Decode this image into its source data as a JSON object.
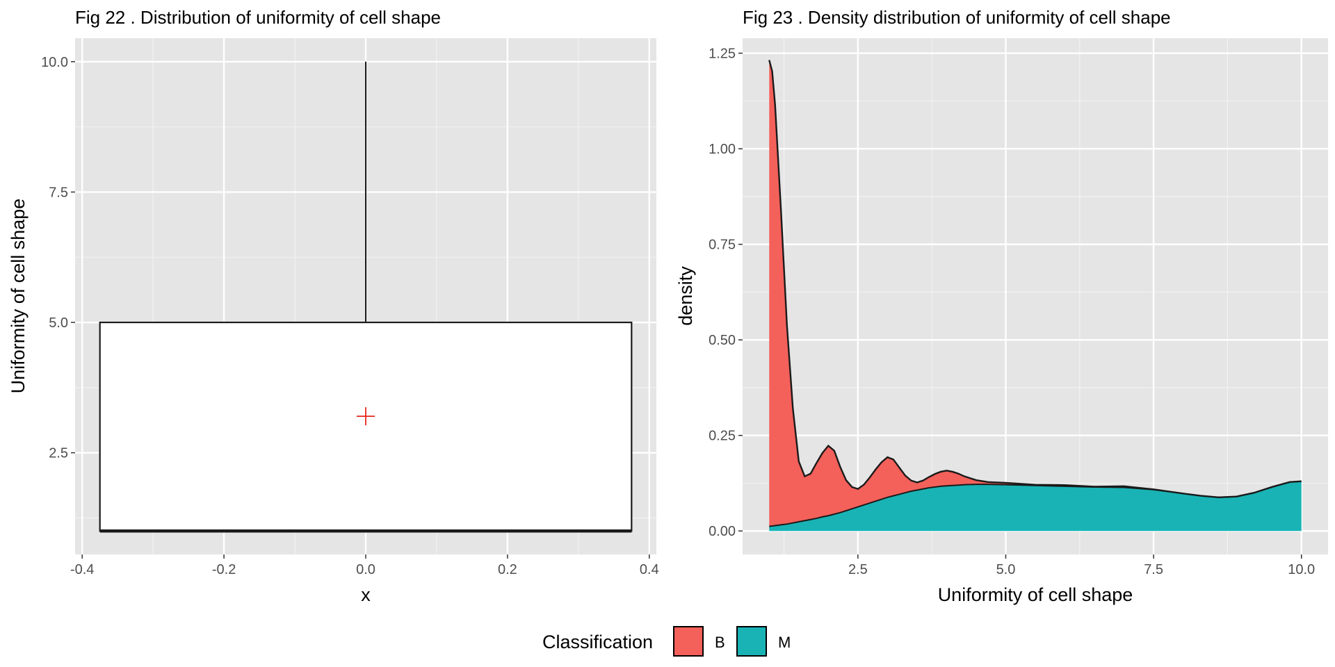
{
  "chart_data": [
    {
      "type": "boxplot",
      "title": "Fig 22 . Distribution of uniformity of cell shape",
      "xlabel": "x",
      "ylabel": "Uniformity of cell shape",
      "xlim": [
        -0.41,
        0.41
      ],
      "ylim": [
        0.55,
        10.45
      ],
      "x_ticks": [
        {
          "value": -0.4,
          "label": "-0.4"
        },
        {
          "value": -0.2,
          "label": "-0.2"
        },
        {
          "value": 0.0,
          "label": "0.0"
        },
        {
          "value": 0.2,
          "label": "0.2"
        },
        {
          "value": 0.4,
          "label": "0.4"
        }
      ],
      "y_ticks": [
        {
          "value": 2.5,
          "label": "2.5"
        },
        {
          "value": 5.0,
          "label": "5.0"
        },
        {
          "value": 7.5,
          "label": "7.5"
        },
        {
          "value": 10.0,
          "label": "10.0"
        }
      ],
      "box": {
        "x": 0.0,
        "half_width": 0.375,
        "min": 1,
        "q1": 1,
        "median": 1,
        "q3": 5,
        "max": 10,
        "mean": 3.2
      },
      "colors": {
        "box_fill": "#ffffff",
        "box_stroke": "#1a1a1a",
        "mean_marker": "#e8261a"
      }
    },
    {
      "type": "area",
      "stacked": true,
      "title": "Fig 23 . Density distribution of uniformity of cell shape",
      "xlabel": "Uniformity of cell shape",
      "ylabel": "density",
      "xlim": [
        0.55,
        10.45
      ],
      "ylim": [
        -0.0614,
        1.2892
      ],
      "x_ticks": [
        {
          "value": 2.5,
          "label": "2.5"
        },
        {
          "value": 5.0,
          "label": "5.0"
        },
        {
          "value": 7.5,
          "label": "7.5"
        },
        {
          "value": 10.0,
          "label": "10.0"
        }
      ],
      "y_ticks": [
        {
          "value": 0.0,
          "label": "0.00"
        },
        {
          "value": 0.25,
          "label": "0.25"
        },
        {
          "value": 0.5,
          "label": "0.50"
        },
        {
          "value": 0.75,
          "label": "0.75"
        },
        {
          "value": 1.0,
          "label": "1.00"
        },
        {
          "value": 1.25,
          "label": "1.25"
        }
      ],
      "x": [
        1.0,
        1.05,
        1.1,
        1.2,
        1.3,
        1.4,
        1.5,
        1.6,
        1.7,
        1.8,
        1.9,
        2.0,
        2.1,
        2.2,
        2.3,
        2.4,
        2.5,
        2.6,
        2.7,
        2.8,
        2.9,
        3.0,
        3.1,
        3.2,
        3.3,
        3.4,
        3.5,
        3.6,
        3.7,
        3.8,
        3.9,
        4.0,
        4.1,
        4.2,
        4.3,
        4.5,
        4.7,
        5.0,
        5.5,
        6.0,
        6.5,
        7.0,
        7.5,
        8.0,
        8.3,
        8.6,
        8.9,
        9.2,
        9.5,
        9.8,
        10.0
      ],
      "series": [
        {
          "name": "M",
          "fill": "#19b3b5",
          "values": [
            0.012,
            0.013,
            0.014,
            0.016,
            0.018,
            0.021,
            0.024,
            0.027,
            0.03,
            0.033,
            0.037,
            0.04,
            0.044,
            0.048,
            0.053,
            0.058,
            0.063,
            0.068,
            0.073,
            0.078,
            0.083,
            0.088,
            0.092,
            0.096,
            0.1,
            0.104,
            0.107,
            0.11,
            0.113,
            0.115,
            0.117,
            0.118,
            0.119,
            0.12,
            0.121,
            0.122,
            0.122,
            0.121,
            0.119,
            0.117,
            0.115,
            0.114,
            0.108,
            0.098,
            0.092,
            0.088,
            0.09,
            0.1,
            0.115,
            0.128,
            0.13
          ]
        },
        {
          "name": "B",
          "fill": "#f4605a",
          "values": [
            1.22,
            1.19,
            1.1,
            0.82,
            0.52,
            0.3,
            0.158,
            0.116,
            0.12,
            0.145,
            0.167,
            0.183,
            0.166,
            0.12,
            0.08,
            0.057,
            0.047,
            0.053,
            0.067,
            0.083,
            0.097,
            0.105,
            0.095,
            0.07,
            0.045,
            0.028,
            0.02,
            0.022,
            0.028,
            0.034,
            0.038,
            0.04,
            0.036,
            0.03,
            0.022,
            0.011,
            0.006,
            0.005,
            0.002,
            0.003,
            0.001,
            0.003,
            0.001,
            0.0,
            0.0,
            0.0,
            0.0,
            0.0,
            0.0,
            0.0,
            0.0
          ]
        }
      ]
    }
  ],
  "legend": {
    "title": "Classification",
    "items": [
      {
        "label": "B",
        "color": "#f4605a"
      },
      {
        "label": "M",
        "color": "#19b3b5"
      }
    ]
  },
  "colors": {
    "panel_bg": "#e5e5e5",
    "grid_major": "#ffffff",
    "grid_minor": "#f2f2f2",
    "tick": "#333333"
  }
}
